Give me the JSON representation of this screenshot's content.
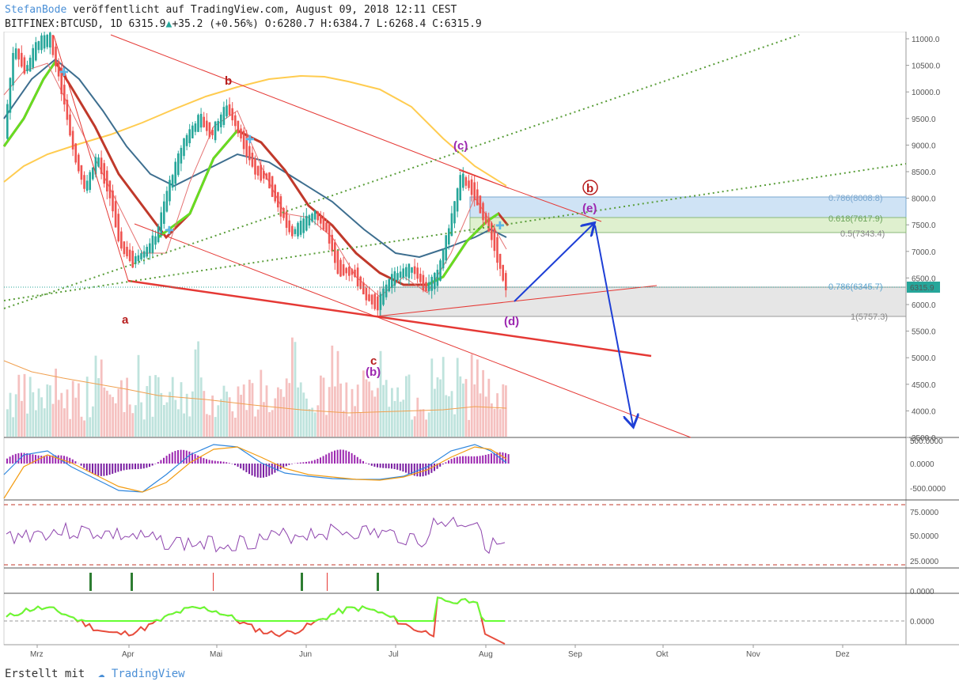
{
  "header": {
    "author": "StefanBode",
    "published": "veröffentlicht auf TradingView.com, August 09, 2018 12:11 CEST",
    "symbol": "BITFINEX:BTCUSD, 1D",
    "last": "6315.9",
    "change": "+35.2 (+0.56%)",
    "open_label": "O:",
    "open": "6280.7",
    "high_label": "H:",
    "high": "6384.7",
    "low_label": "L:",
    "low": "6268.4",
    "close_label": "C:",
    "close": "6315.9"
  },
  "footer": {
    "created_with": "Erstellt mit",
    "brand": "TradingView"
  },
  "colors": {
    "up": "#26a69a",
    "down": "#ef5350",
    "trendline": "#e53935",
    "ema_green": "#4caf50",
    "ema_bright": "#76ff03",
    "ma_blue": "#3d6e8f",
    "ma_yellow": "#ffcc50",
    "arrow": "#1e3fd6",
    "wave_purple": "#9c27b0",
    "wave_red": "#b71c1c"
  },
  "chart_data": {
    "type": "candlestick",
    "price_axis": [
      "11000.0",
      "10500.0",
      "10000.0",
      "9500.0",
      "9000.0",
      "8500.0",
      "8000.0",
      "7500.0",
      "7000.0",
      "6500.0",
      "6000.0",
      "5500.0",
      "5000.0",
      "4500.0",
      "4000.0",
      "3500.0"
    ],
    "last_price_label": "6315.9",
    "x_labels": [
      "Mrz",
      "Apr",
      "Mai",
      "Jun",
      "Jul",
      "Aug",
      "Sep",
      "Okt",
      "Nov",
      "Dez"
    ],
    "fib_levels": [
      {
        "label": "0.786(8008.8)",
        "value": 8008.8
      },
      {
        "label": "0.618(7617.9)",
        "value": 7617.9
      },
      {
        "label": "0.5(7343.4)",
        "value": 7343.4
      },
      {
        "label": "0.786(6345.7)",
        "value": 6345.7
      },
      {
        "label": "1(5757.3)",
        "value": 5757.3
      }
    ],
    "wave_labels": [
      "a",
      "b",
      "c",
      "(b)",
      "(c)",
      "(d)",
      "(e)",
      "b"
    ],
    "indicator_axes": {
      "macd": [
        "500.0000",
        "0.0000",
        "-500.0000"
      ],
      "rsi": [
        "75.0000",
        "50.0000",
        "25.0000"
      ],
      "signal": [
        "0.0000"
      ],
      "oscillator": [
        "0.0000"
      ]
    }
  }
}
